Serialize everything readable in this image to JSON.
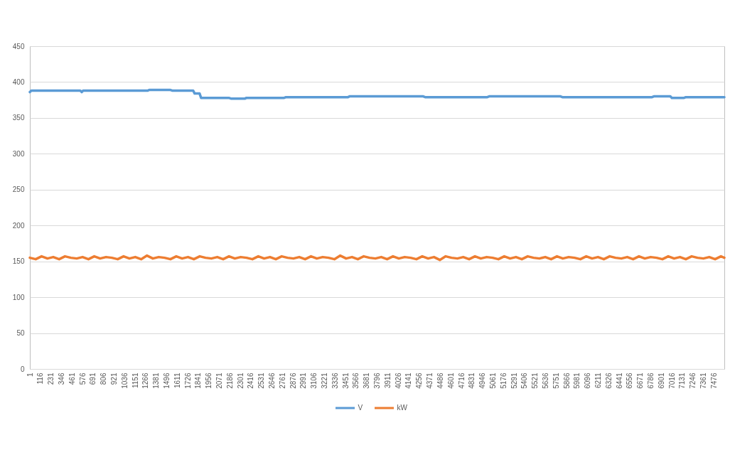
{
  "chart_data": {
    "type": "line",
    "xlim": [
      1,
      7590
    ],
    "xticks": [
      1,
      116,
      231,
      346,
      461,
      576,
      691,
      806,
      921,
      1036,
      1151,
      1266,
      1381,
      1496,
      1611,
      1726,
      1841,
      1956,
      2071,
      2186,
      2301,
      2416,
      2531,
      2646,
      2761,
      2876,
      2991,
      3106,
      3221,
      3336,
      3451,
      3566,
      3681,
      3796,
      3911,
      4026,
      4141,
      4256,
      4371,
      4486,
      4601,
      4716,
      4831,
      4946,
      5061,
      5176,
      5291,
      5406,
      5521,
      5636,
      5751,
      5866,
      5981,
      6096,
      6211,
      6326,
      6441,
      6556,
      6671,
      6786,
      6901,
      7016,
      7131,
      7246,
      7361,
      7476
    ],
    "ylim": [
      0,
      450
    ],
    "yticks": [
      0,
      50,
      100,
      150,
      200,
      250,
      300,
      350,
      400,
      450
    ],
    "grid": "y",
    "legend": "bottom",
    "series": [
      {
        "name": "V",
        "color": "#5b9bd5",
        "x": [
          1,
          17,
          552,
          568,
          583,
          1290,
          1305,
          1538,
          1561,
          1786,
          1802,
          1856,
          1872,
          2174,
          2198,
          2353,
          2368,
          2780,
          2800,
          3090,
          3106,
          3478,
          3494,
          4300,
          4320,
          5000,
          5020,
          5800,
          5820,
          6800,
          6820,
          7000,
          7016,
          7150,
          7170,
          7590
        ],
        "values": [
          386,
          388,
          388,
          386,
          388,
          388,
          389,
          389,
          388,
          388,
          384,
          384,
          378,
          378,
          377,
          377,
          378,
          378,
          379,
          379,
          379,
          379,
          380,
          380,
          379,
          379,
          380,
          380,
          379,
          379,
          380,
          380,
          378,
          378,
          379,
          379
        ]
      },
      {
        "name": "kW",
        "color": "#ed7d31",
        "x": [
          1,
          65,
          129,
          193,
          257,
          321,
          385,
          449,
          513,
          577,
          641,
          705,
          769,
          833,
          897,
          961,
          1025,
          1089,
          1153,
          1217,
          1281,
          1345,
          1409,
          1473,
          1537,
          1601,
          1665,
          1729,
          1793,
          1857,
          1921,
          1985,
          2049,
          2113,
          2177,
          2241,
          2305,
          2369,
          2433,
          2497,
          2561,
          2625,
          2689,
          2753,
          2817,
          2881,
          2945,
          3009,
          3073,
          3137,
          3201,
          3265,
          3329,
          3393,
          3457,
          3521,
          3585,
          3649,
          3713,
          3777,
          3841,
          3905,
          3969,
          4033,
          4097,
          4161,
          4225,
          4289,
          4353,
          4417,
          4481,
          4545,
          4609,
          4673,
          4737,
          4801,
          4865,
          4929,
          4993,
          5057,
          5121,
          5185,
          5249,
          5313,
          5377,
          5441,
          5505,
          5569,
          5633,
          5697,
          5761,
          5825,
          5889,
          5953,
          6017,
          6081,
          6145,
          6209,
          6273,
          6337,
          6401,
          6465,
          6529,
          6593,
          6657,
          6721,
          6785,
          6849,
          6913,
          6977,
          7041,
          7105,
          7169,
          7233,
          7297,
          7361,
          7425,
          7489,
          7553,
          7590
        ],
        "values": [
          155,
          153,
          157,
          154,
          156,
          153,
          157,
          155,
          154,
          156,
          153,
          157,
          154,
          156,
          155,
          153,
          157,
          154,
          156,
          153,
          158,
          154,
          156,
          155,
          153,
          157,
          154,
          156,
          153,
          157,
          155,
          154,
          156,
          153,
          157,
          154,
          156,
          155,
          153,
          157,
          154,
          156,
          153,
          157,
          155,
          154,
          156,
          153,
          157,
          154,
          156,
          155,
          153,
          158,
          154,
          156,
          153,
          157,
          155,
          154,
          156,
          153,
          157,
          154,
          156,
          155,
          153,
          157,
          154,
          156,
          152,
          157,
          155,
          154,
          156,
          153,
          157,
          154,
          156,
          155,
          153,
          157,
          154,
          156,
          153,
          157,
          155,
          154,
          156,
          153,
          157,
          154,
          156,
          155,
          153,
          157,
          154,
          156,
          153,
          157,
          155,
          154,
          156,
          153,
          157,
          154,
          156,
          155,
          153,
          157,
          154,
          156,
          153,
          157,
          155,
          154,
          156,
          153,
          157,
          155
        ]
      }
    ]
  }
}
